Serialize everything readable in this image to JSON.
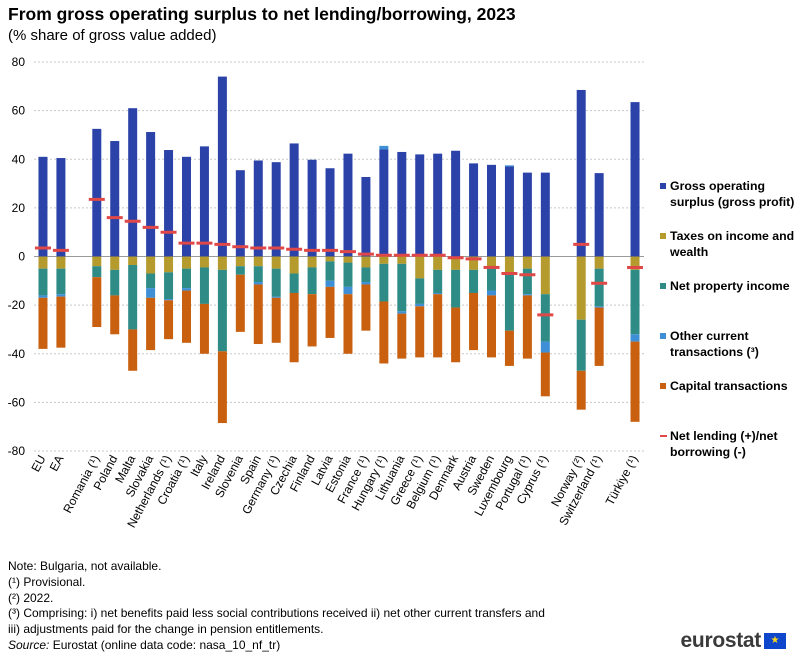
{
  "colors": {
    "gos": "#2b43a8",
    "tax": "#b59a2d",
    "npi": "#2e8b86",
    "oct": "#3f8fd6",
    "cap": "#c8600f",
    "net": "#e04848",
    "grid": "#c8c8c8"
  },
  "logo": {
    "text": "eurostat",
    "flag": "★"
  },
  "notes": [
    "Note: Bulgaria, not available.",
    "(¹) Provisional.",
    "(²) 2022.",
    "(³) Comprising: i) net benefits paid less social contributions received ii) net other current transfers and",
    "iii) adjustments  paid for the change in pension entitlements."
  ],
  "source": {
    "label": "Source:",
    "text": "Eurostat (online data code: nasa_10_nf_tr)"
  },
  "chart_data": {
    "type": "bar",
    "stacked": true,
    "title": "From gross operating surplus to net lending/borrowing, 2023",
    "subtitle": "(% share of gross value added)",
    "ylim": [
      -80,
      80
    ],
    "yticks": [
      -80,
      -60,
      -40,
      -20,
      0,
      20,
      40,
      60,
      80
    ],
    "grid": true,
    "legend_position": "right",
    "categories": [
      "EU",
      "EA",
      "",
      "Romania (¹)",
      "Poland",
      "Malta",
      "Slovakia",
      "Netherlands (¹)",
      "Croatia (¹)",
      "Italy",
      "Ireland",
      "Slovenia",
      "Spain",
      "Germany (¹)",
      "Czechia",
      "Finland",
      "Latvia",
      "Estonia",
      "France (¹)",
      "Hungary (¹)",
      "Lithuania",
      "Greece (¹)",
      "Belgium (¹)",
      "Denmark",
      "Austria",
      "Sweden",
      "Luxembourg",
      "Portugal (¹)",
      "Cyprus (¹)",
      "",
      "Norway (²)",
      "Switzerland (¹)",
      "",
      "Türkiye (¹)"
    ],
    "series": [
      {
        "name": "Gross operating surplus (gross profit)",
        "key": "gos",
        "values": [
          41,
          40.5,
          null,
          52.5,
          47.5,
          61,
          51.2,
          43.8,
          41,
          45.3,
          74,
          35.5,
          39.5,
          38.8,
          46.5,
          39.8,
          36.3,
          42.3,
          32.7,
          44,
          43,
          42,
          42.3,
          43.5,
          38.3,
          37.7,
          37,
          34.5,
          34.5,
          null,
          68.5,
          34.3,
          null,
          63.5
        ]
      },
      {
        "name": "Taxes on income and wealth",
        "key": "tax",
        "values": [
          -5,
          -5,
          null,
          -4,
          -5.5,
          -3.5,
          -7,
          -6.5,
          -5,
          -4.5,
          -5.5,
          -4,
          -4,
          -5,
          -7,
          -4.5,
          -2,
          -2.5,
          -4.5,
          -3,
          -3,
          -9,
          -5.5,
          -5.5,
          -5.5,
          -4,
          -7.5,
          -5,
          -15.5,
          null,
          -26,
          -5,
          null,
          -5.5
        ]
      },
      {
        "name": "Net property income",
        "key": "npi",
        "values": [
          -11,
          -10.5,
          null,
          -4.5,
          -10.5,
          -26.5,
          -6,
          -11,
          -8,
          -15,
          -33.5,
          -3.5,
          -6.5,
          -11.5,
          -8,
          -11,
          -8,
          -10,
          -6,
          -15.5,
          -19.5,
          -10.5,
          -9.5,
          -15.5,
          -9.5,
          -10,
          -23,
          -10.5,
          -19.5,
          null,
          -21,
          -15.5,
          null,
          -26.5
        ]
      },
      {
        "name": "Other current transactions (³)",
        "key": "oct",
        "values": [
          -1,
          -1,
          null,
          0,
          0,
          0,
          -4,
          -0.5,
          -1,
          0,
          0,
          0,
          -1,
          -0.5,
          0,
          0,
          -2.5,
          -3,
          -1,
          1.5,
          -1,
          -1,
          -0.5,
          0,
          0,
          -2,
          0.5,
          -0.5,
          -4.5,
          null,
          0,
          -0.5,
          null,
          -3
        ]
      },
      {
        "name": "Capital transactions",
        "key": "cap",
        "values": [
          -21,
          -21,
          null,
          -20.5,
          -16,
          -17,
          -21.5,
          -16,
          -21.5,
          -20.5,
          -29.5,
          -23.5,
          -24.5,
          -18.5,
          -28.5,
          -21.5,
          -21,
          -24.5,
          -19,
          -25.5,
          -18.5,
          -21,
          -26,
          -22.5,
          -23.5,
          -25.5,
          -14.5,
          -26,
          -18,
          null,
          -16,
          -24,
          null,
          -33
        ]
      },
      {
        "name": "Net lending (+)/net borrowing (-)",
        "key": "net",
        "kind": "marker",
        "values": [
          3.5,
          2.5,
          null,
          23.5,
          16,
          14.5,
          12,
          10,
          5.5,
          5.5,
          5,
          4,
          3.5,
          3.5,
          3,
          2.5,
          2.5,
          2,
          1,
          0.5,
          0.5,
          0.5,
          0.5,
          -0.5,
          -1,
          -4.5,
          -7,
          -7.5,
          -24,
          null,
          5,
          -11,
          null,
          -4.5
        ]
      }
    ]
  }
}
